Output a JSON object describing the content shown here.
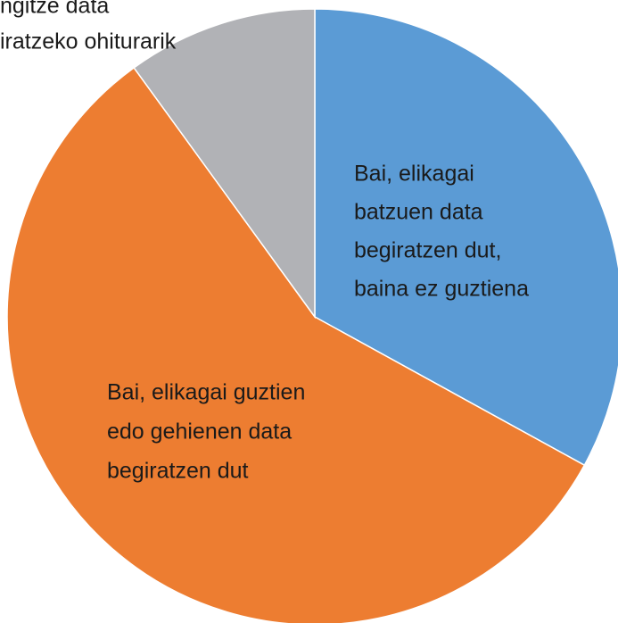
{
  "chart_data": {
    "type": "pie",
    "categories": [
      [
        "Bai, elikagai",
        "batzuen data",
        "begiratzen dut,",
        "baina ez guztiena"
      ],
      [
        "Bai, elikagai guztien",
        "edo gehienen data",
        "begiratzen dut"
      ],
      [
        "ngitze data",
        "iratzeko ohiturarik"
      ]
    ],
    "values": [
      33,
      57,
      10
    ],
    "colors": [
      "#5b9bd5",
      "#ed7d31",
      "#b1b2b6"
    ]
  }
}
